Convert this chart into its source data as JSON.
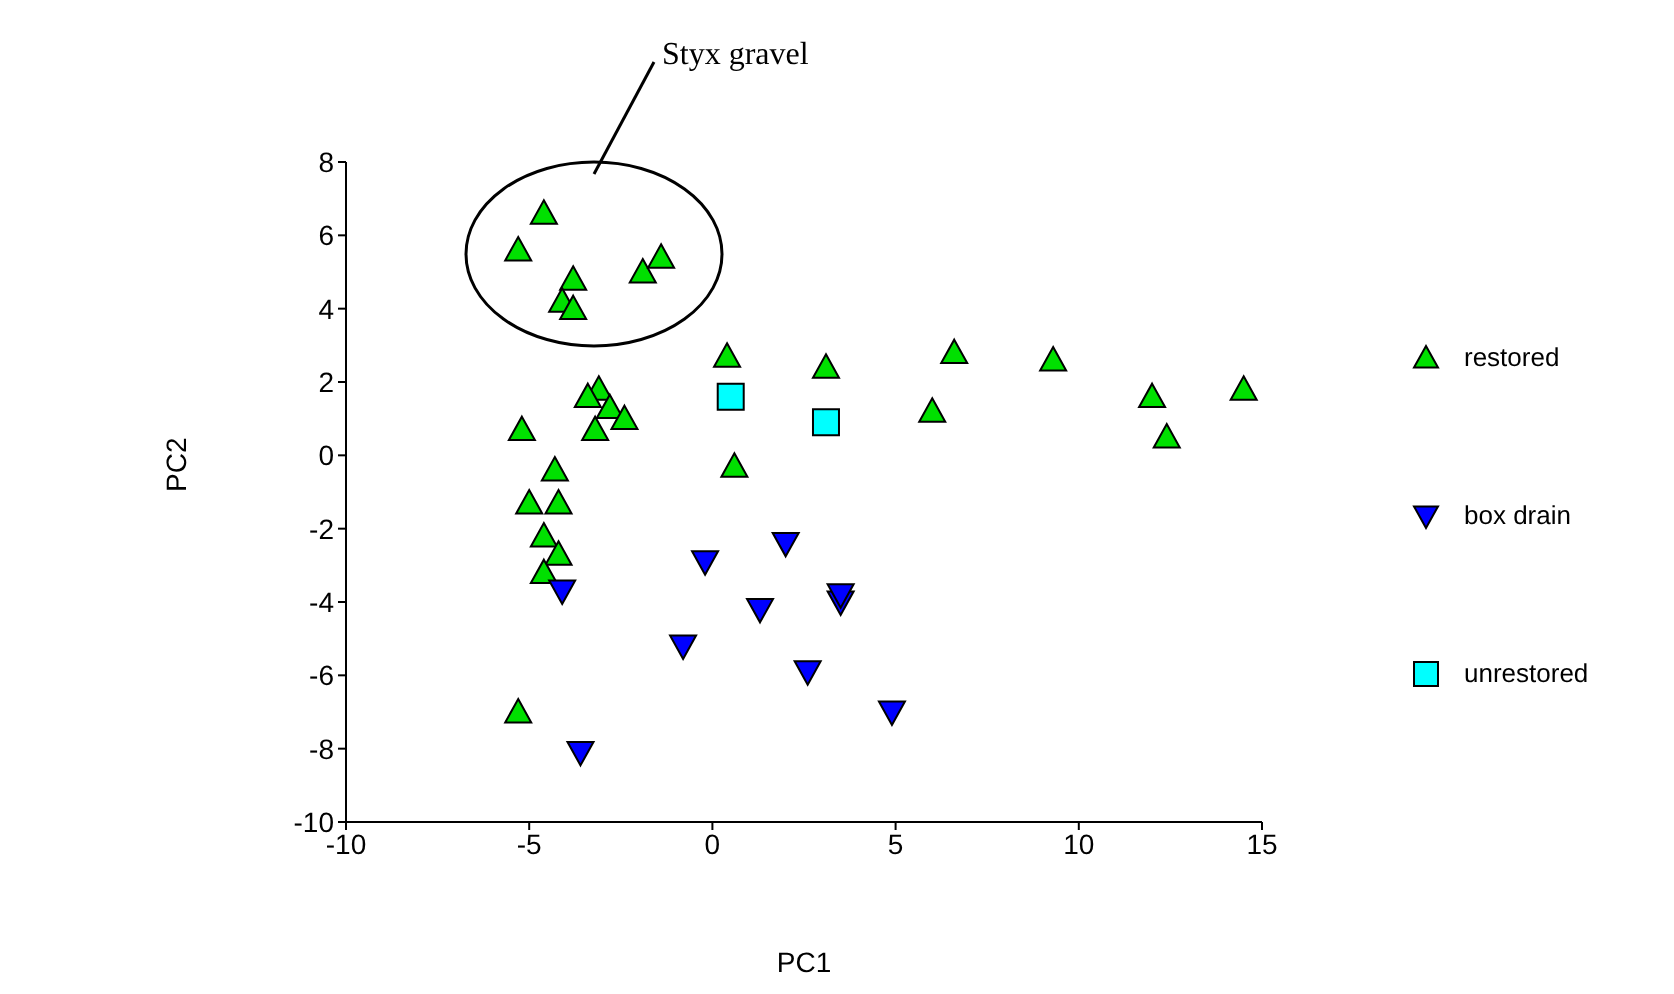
{
  "chart_data": {
    "type": "scatter",
    "xlabel": "PC1",
    "ylabel": "PC2",
    "xlim": [
      -10,
      15
    ],
    "xticks": [
      -10,
      -5,
      0,
      5,
      10,
      15
    ],
    "ylim": [
      -10,
      8
    ],
    "yticks": [
      -10,
      -8,
      -6,
      -4,
      -2,
      0,
      2,
      4,
      6,
      8
    ],
    "grid": false,
    "legend": "right",
    "annotations": [
      "Styx gravel"
    ],
    "series": [
      {
        "name": "restored",
        "color": "#00e000",
        "marker": "triangle",
        "x": [
          -4.6,
          -5.3,
          -3.8,
          -4.1,
          -3.8,
          -1.9,
          -1.4,
          0.4,
          3.1,
          -3.1,
          -3.4,
          -2.8,
          -2.4,
          -3.2,
          -5.2,
          0.6,
          -4.3,
          -5.0,
          -4.2,
          -4.6,
          -4.2,
          -4.6,
          -5.3,
          6.6,
          6.0,
          9.3,
          12.0,
          12.4,
          14.5
        ],
        "values": [
          6.6,
          5.6,
          4.8,
          4.2,
          4.0,
          5.0,
          5.4,
          2.7,
          2.4,
          1.8,
          1.6,
          1.3,
          1.0,
          0.7,
          0.7,
          -0.3,
          -0.4,
          -1.3,
          -1.3,
          -2.2,
          -2.7,
          -3.2,
          -7.0,
          2.8,
          1.2,
          2.6,
          1.6,
          0.5,
          1.8
        ]
      },
      {
        "name": "box drain",
        "color": "#0000ff",
        "marker": "triangle-down",
        "x": [
          -4.1,
          -3.6,
          -0.2,
          2.0,
          -0.8,
          1.3,
          3.5,
          3.5,
          2.6,
          4.9
        ],
        "values": [
          -3.7,
          -8.1,
          -2.9,
          -2.4,
          -5.2,
          -4.2,
          -4.0,
          -3.8,
          -5.9,
          -7.0
        ]
      },
      {
        "name": "unrestored",
        "color": "#00ffff",
        "marker": "square",
        "x": [
          0.5,
          3.1
        ],
        "values": [
          1.6,
          0.9
        ]
      }
    ]
  }
}
